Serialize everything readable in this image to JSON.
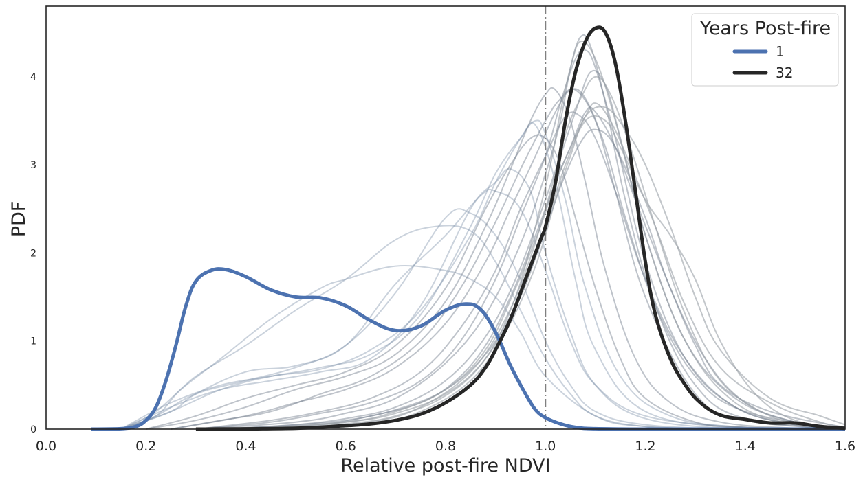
{
  "chart_data": {
    "type": "line",
    "xlabel": "Relative post-fire NDVI",
    "ylabel": "PDF",
    "xlim": [
      0.0,
      1.6
    ],
    "ylim": [
      0,
      4.8
    ],
    "xticks": [
      "0.0",
      "0.2",
      "0.4",
      "0.6",
      "0.8",
      "1.0",
      "1.2",
      "1.4",
      "1.6"
    ],
    "yticks": [
      "0",
      "1",
      "2",
      "3",
      "4"
    ],
    "grid": false,
    "reference_line": {
      "x": 1.0,
      "style": "dash-dot",
      "color": "#808080"
    },
    "legend": {
      "title": "Years Post-fire",
      "placement": "top-right",
      "entries": [
        {
          "label": "1",
          "color": "#4c72b0"
        },
        {
          "label": "32",
          "color": "#262626"
        }
      ]
    },
    "highlight_series": [
      {
        "name": "1",
        "color": "#4c72b0",
        "x": [
          0.09,
          0.15,
          0.18,
          0.2,
          0.22,
          0.24,
          0.26,
          0.28,
          0.3,
          0.33,
          0.36,
          0.4,
          0.45,
          0.5,
          0.55,
          0.6,
          0.65,
          0.7,
          0.75,
          0.8,
          0.84,
          0.87,
          0.9,
          0.93,
          0.96,
          0.98,
          1.0,
          1.03,
          1.06,
          1.1,
          1.2,
          1.3,
          1.6
        ],
        "y": [
          0,
          0.005,
          0.03,
          0.1,
          0.25,
          0.55,
          0.95,
          1.4,
          1.68,
          1.8,
          1.81,
          1.73,
          1.58,
          1.5,
          1.49,
          1.4,
          1.23,
          1.12,
          1.17,
          1.35,
          1.42,
          1.36,
          1.1,
          0.72,
          0.4,
          0.22,
          0.13,
          0.06,
          0.02,
          0.005,
          0,
          0,
          0
        ]
      },
      {
        "name": "32",
        "color": "#262626",
        "x": [
          0.3,
          0.5,
          0.6,
          0.65,
          0.7,
          0.75,
          0.8,
          0.85,
          0.88,
          0.9,
          0.93,
          0.96,
          0.99,
          1.0,
          1.02,
          1.04,
          1.06,
          1.08,
          1.1,
          1.12,
          1.14,
          1.16,
          1.18,
          1.2,
          1.22,
          1.25,
          1.28,
          1.31,
          1.35,
          1.4,
          1.45,
          1.5,
          1.55,
          1.6
        ],
        "y": [
          0,
          0.01,
          0.04,
          0.06,
          0.1,
          0.17,
          0.3,
          0.5,
          0.7,
          0.9,
          1.25,
          1.7,
          2.15,
          2.3,
          2.8,
          3.5,
          4.05,
          4.4,
          4.55,
          4.5,
          4.15,
          3.5,
          2.7,
          1.9,
          1.3,
          0.8,
          0.5,
          0.3,
          0.16,
          0.11,
          0.07,
          0.07,
          0.03,
          0.01
        ]
      }
    ],
    "background_series": [
      {
        "color": "#7a8ea8",
        "opacity": 0.4,
        "x": [
          0.15,
          0.25,
          0.3,
          0.4,
          0.5,
          0.6,
          0.7,
          0.8,
          0.87,
          0.9,
          0.95,
          1.0,
          1.05,
          1.1,
          1.2,
          1.4,
          1.6
        ],
        "y": [
          0,
          0.2,
          0.4,
          0.65,
          0.72,
          0.95,
          1.65,
          2.2,
          2.65,
          2.7,
          2.5,
          1.8,
          1.0,
          0.5,
          0.15,
          0.02,
          0
        ]
      },
      {
        "color": "#7a8ea8",
        "opacity": 0.4,
        "x": [
          0.15,
          0.22,
          0.27,
          0.35,
          0.45,
          0.55,
          0.6,
          0.7,
          0.8,
          0.85,
          0.9,
          0.95,
          1.0,
          1.1,
          1.2,
          1.4,
          1.6
        ],
        "y": [
          0,
          0.15,
          0.45,
          0.8,
          1.25,
          1.6,
          1.7,
          1.85,
          1.8,
          1.7,
          1.5,
          1.1,
          0.6,
          0.15,
          0.03,
          0,
          0
        ]
      },
      {
        "color": "#7a8ea8",
        "opacity": 0.4,
        "x": [
          0.15,
          0.22,
          0.3,
          0.4,
          0.5,
          0.6,
          0.7,
          0.78,
          0.85,
          0.9,
          0.95,
          1.0,
          1.05,
          1.1,
          1.2,
          1.4,
          1.6
        ],
        "y": [
          0,
          0.2,
          0.6,
          0.95,
          1.35,
          1.7,
          2.15,
          2.3,
          2.25,
          1.9,
          1.35,
          0.8,
          0.4,
          0.15,
          0.03,
          0,
          0
        ]
      },
      {
        "color": "#7a8ea8",
        "opacity": 0.4,
        "x": [
          0.15,
          0.22,
          0.3,
          0.4,
          0.5,
          0.6,
          0.7,
          0.8,
          0.85,
          0.9,
          0.95,
          1.0,
          1.05,
          1.1,
          1.2,
          1.4,
          1.6
        ],
        "y": [
          0,
          0.15,
          0.4,
          0.55,
          0.7,
          0.95,
          1.55,
          2.4,
          2.45,
          2.2,
          1.7,
          1.0,
          0.5,
          0.2,
          0.05,
          0,
          0
        ]
      },
      {
        "color": "#7a8ea8",
        "opacity": 0.4,
        "x": [
          0.15,
          0.25,
          0.35,
          0.45,
          0.55,
          0.65,
          0.75,
          0.85,
          0.9,
          0.93,
          0.97,
          1.0,
          1.05,
          1.1,
          1.2,
          1.4,
          1.6
        ],
        "y": [
          0,
          0.25,
          0.45,
          0.55,
          0.65,
          0.8,
          1.4,
          2.5,
          2.8,
          2.95,
          2.7,
          2.0,
          1.1,
          0.5,
          0.12,
          0,
          0
        ]
      },
      {
        "color": "#7a8ea8",
        "opacity": 0.4,
        "x": [
          0.15,
          0.25,
          0.35,
          0.45,
          0.55,
          0.65,
          0.75,
          0.85,
          0.9,
          0.95,
          0.98,
          1.02,
          1.06,
          1.1,
          1.2,
          1.4,
          1.6
        ],
        "y": [
          0,
          0.3,
          0.5,
          0.6,
          0.7,
          0.85,
          1.3,
          2.3,
          2.9,
          3.3,
          3.45,
          2.8,
          1.7,
          0.9,
          0.2,
          0.01,
          0
        ]
      },
      {
        "color": "#7a8ea8",
        "opacity": 0.4,
        "x": [
          0.15,
          0.25,
          0.35,
          0.45,
          0.55,
          0.65,
          0.75,
          0.85,
          0.9,
          0.95,
          0.98,
          1.0,
          1.04,
          1.08,
          1.15,
          1.25,
          1.4,
          1.6
        ],
        "y": [
          0,
          0.2,
          0.45,
          0.6,
          0.68,
          0.9,
          1.35,
          2.2,
          2.8,
          3.3,
          3.5,
          3.35,
          2.6,
          1.6,
          0.6,
          0.15,
          0.02,
          0
        ]
      },
      {
        "color": "#6e7a8a",
        "opacity": 0.45,
        "x": [
          0.2,
          0.3,
          0.4,
          0.5,
          0.6,
          0.7,
          0.8,
          0.88,
          0.93,
          0.97,
          1.0,
          1.03,
          1.06,
          1.1,
          1.15,
          1.2,
          1.3,
          1.4,
          1.6
        ],
        "y": [
          0,
          0.15,
          0.35,
          0.5,
          0.65,
          0.95,
          1.6,
          2.5,
          3.0,
          3.3,
          3.3,
          3.0,
          2.4,
          1.6,
          0.8,
          0.35,
          0.08,
          0.02,
          0
        ]
      },
      {
        "color": "#6e7a8a",
        "opacity": 0.45,
        "x": [
          0.2,
          0.3,
          0.4,
          0.5,
          0.6,
          0.7,
          0.8,
          0.88,
          0.93,
          0.97,
          1.0,
          1.02,
          1.05,
          1.08,
          1.12,
          1.18,
          1.25,
          1.35,
          1.5,
          1.6
        ],
        "y": [
          0,
          0.1,
          0.25,
          0.45,
          0.6,
          0.85,
          1.45,
          2.3,
          2.95,
          3.5,
          3.8,
          3.85,
          3.5,
          2.8,
          1.8,
          0.8,
          0.3,
          0.08,
          0.01,
          0
        ]
      },
      {
        "color": "#6e7a8a",
        "opacity": 0.45,
        "x": [
          0.25,
          0.35,
          0.45,
          0.55,
          0.65,
          0.75,
          0.83,
          0.9,
          0.95,
          1.0,
          1.03,
          1.06,
          1.1,
          1.14,
          1.2,
          1.3,
          1.4,
          1.6
        ],
        "y": [
          0,
          0.1,
          0.2,
          0.4,
          0.6,
          1.0,
          1.6,
          2.35,
          2.95,
          3.5,
          3.75,
          3.85,
          3.5,
          2.7,
          1.5,
          0.4,
          0.1,
          0
        ]
      },
      {
        "color": "#6e7a8a",
        "opacity": 0.45,
        "x": [
          0.25,
          0.4,
          0.5,
          0.6,
          0.7,
          0.8,
          0.88,
          0.93,
          0.98,
          1.02,
          1.05,
          1.08,
          1.12,
          1.16,
          1.22,
          1.3,
          1.4,
          1.6
        ],
        "y": [
          0,
          0.15,
          0.3,
          0.45,
          0.7,
          1.2,
          1.9,
          2.5,
          3.1,
          3.6,
          3.85,
          3.75,
          3.2,
          2.4,
          1.4,
          0.6,
          0.2,
          0
        ]
      },
      {
        "color": "#6e7a8a",
        "opacity": 0.45,
        "x": [
          0.3,
          0.45,
          0.55,
          0.65,
          0.75,
          0.83,
          0.9,
          0.95,
          1.0,
          1.04,
          1.07,
          1.1,
          1.14,
          1.2,
          1.28,
          1.38,
          1.5,
          1.6
        ],
        "y": [
          0,
          0.1,
          0.2,
          0.35,
          0.65,
          1.15,
          1.8,
          2.5,
          3.1,
          3.55,
          3.55,
          3.3,
          2.7,
          1.7,
          0.8,
          0.25,
          0.05,
          0
        ]
      },
      {
        "color": "#6e7a8a",
        "opacity": 0.45,
        "x": [
          0.3,
          0.45,
          0.55,
          0.65,
          0.75,
          0.83,
          0.9,
          0.95,
          1.0,
          1.03,
          1.06,
          1.08,
          1.1,
          1.14,
          1.2,
          1.28,
          1.38,
          1.5,
          1.6
        ],
        "y": [
          0,
          0.08,
          0.18,
          0.3,
          0.55,
          1.0,
          1.7,
          2.4,
          3.1,
          3.7,
          4.2,
          4.3,
          4.1,
          3.3,
          1.9,
          0.8,
          0.25,
          0.05,
          0
        ]
      },
      {
        "color": "#6e7a8a",
        "opacity": 0.45,
        "x": [
          0.3,
          0.5,
          0.6,
          0.7,
          0.8,
          0.88,
          0.95,
          1.0,
          1.03,
          1.05,
          1.07,
          1.09,
          1.12,
          1.16,
          1.22,
          1.3,
          1.4,
          1.6
        ],
        "y": [
          0,
          0.08,
          0.18,
          0.35,
          0.75,
          1.3,
          2.1,
          2.9,
          3.5,
          4.1,
          4.45,
          4.35,
          3.7,
          2.6,
          1.4,
          0.5,
          0.12,
          0
        ]
      },
      {
        "color": "#6e7a8a",
        "opacity": 0.45,
        "x": [
          0.35,
          0.5,
          0.6,
          0.7,
          0.8,
          0.88,
          0.94,
          0.99,
          1.03,
          1.06,
          1.09,
          1.12,
          1.15,
          1.2,
          1.28,
          1.38,
          1.5,
          1.6
        ],
        "y": [
          0,
          0.05,
          0.12,
          0.25,
          0.55,
          1.05,
          1.7,
          2.45,
          3.1,
          3.6,
          4.05,
          3.9,
          3.3,
          2.2,
          1.0,
          0.35,
          0.08,
          0
        ]
      },
      {
        "color": "#6e7a8a",
        "opacity": 0.45,
        "x": [
          0.35,
          0.5,
          0.6,
          0.7,
          0.8,
          0.88,
          0.94,
          0.99,
          1.03,
          1.07,
          1.1,
          1.14,
          1.2,
          1.25,
          1.32,
          1.4,
          1.5,
          1.6
        ],
        "y": [
          0,
          0.05,
          0.1,
          0.22,
          0.45,
          0.85,
          1.4,
          2.1,
          2.75,
          3.25,
          3.4,
          3.2,
          2.4,
          1.6,
          0.8,
          0.3,
          0.08,
          0.01
        ]
      },
      {
        "color": "#6e7a8a",
        "opacity": 0.45,
        "x": [
          0.4,
          0.55,
          0.65,
          0.75,
          0.82,
          0.88,
          0.93,
          0.98,
          1.02,
          1.05,
          1.08,
          1.1,
          1.14,
          1.18,
          1.25,
          1.3,
          1.35,
          1.45,
          1.6
        ],
        "y": [
          0,
          0.05,
          0.15,
          0.3,
          0.55,
          0.95,
          1.5,
          2.2,
          2.8,
          3.2,
          3.6,
          3.6,
          3.2,
          2.6,
          1.6,
          0.95,
          0.5,
          0.2,
          0.02
        ]
      },
      {
        "color": "#9aa0a6",
        "opacity": 0.6,
        "x": [
          0.4,
          0.6,
          0.7,
          0.8,
          0.88,
          0.94,
          0.99,
          1.02,
          1.05,
          1.08,
          1.1,
          1.13,
          1.17,
          1.22,
          1.28,
          1.35,
          1.45,
          1.55,
          1.6
        ],
        "y": [
          0,
          0.08,
          0.2,
          0.45,
          0.9,
          1.6,
          2.3,
          2.8,
          3.2,
          3.55,
          3.7,
          3.5,
          3.0,
          2.3,
          1.4,
          0.7,
          0.3,
          0.08,
          0.02
        ]
      },
      {
        "color": "#9aa0a6",
        "opacity": 0.6,
        "x": [
          0.45,
          0.6,
          0.7,
          0.8,
          0.88,
          0.94,
          0.98,
          1.01,
          1.03,
          1.05,
          1.07,
          1.1,
          1.14,
          1.2,
          1.28,
          1.38,
          1.5,
          1.6
        ],
        "y": [
          0,
          0.06,
          0.15,
          0.38,
          0.8,
          1.5,
          2.3,
          3.0,
          3.6,
          4.1,
          4.4,
          4.2,
          3.5,
          2.2,
          1.0,
          0.3,
          0.05,
          0
        ]
      },
      {
        "color": "#9aa0a6",
        "opacity": 0.6,
        "x": [
          0.4,
          0.6,
          0.7,
          0.8,
          0.88,
          0.95,
          1.0,
          1.04,
          1.08,
          1.12,
          1.15,
          1.2,
          1.25,
          1.3,
          1.35,
          1.42,
          1.5,
          1.6
        ],
        "y": [
          0,
          0.08,
          0.18,
          0.4,
          0.8,
          1.5,
          2.3,
          3.0,
          3.5,
          3.5,
          3.2,
          2.6,
          2.2,
          1.7,
          1.0,
          0.4,
          0.1,
          0.02
        ]
      },
      {
        "color": "#9aa0a6",
        "opacity": 0.6,
        "x": [
          0.5,
          0.65,
          0.75,
          0.85,
          0.92,
          0.97,
          1.01,
          1.04,
          1.07,
          1.1,
          1.13,
          1.17,
          1.22,
          1.28,
          1.35,
          1.45,
          1.55,
          1.6
        ],
        "y": [
          0,
          0.08,
          0.25,
          0.65,
          1.25,
          1.95,
          2.7,
          3.35,
          3.75,
          4.0,
          3.8,
          3.2,
          2.3,
          1.3,
          0.55,
          0.15,
          0.03,
          0.01
        ]
      },
      {
        "color": "#9aa0a6",
        "opacity": 0.6,
        "x": [
          0.5,
          0.65,
          0.75,
          0.85,
          0.92,
          0.98,
          1.02,
          1.05,
          1.08,
          1.12,
          1.16,
          1.2,
          1.25,
          1.3,
          1.35,
          1.45,
          1.55,
          1.6
        ],
        "y": [
          0,
          0.06,
          0.2,
          0.55,
          1.1,
          1.85,
          2.6,
          3.1,
          3.55,
          3.65,
          3.4,
          3.0,
          2.3,
          1.5,
          0.9,
          0.35,
          0.15,
          0.05
        ]
      }
    ]
  }
}
